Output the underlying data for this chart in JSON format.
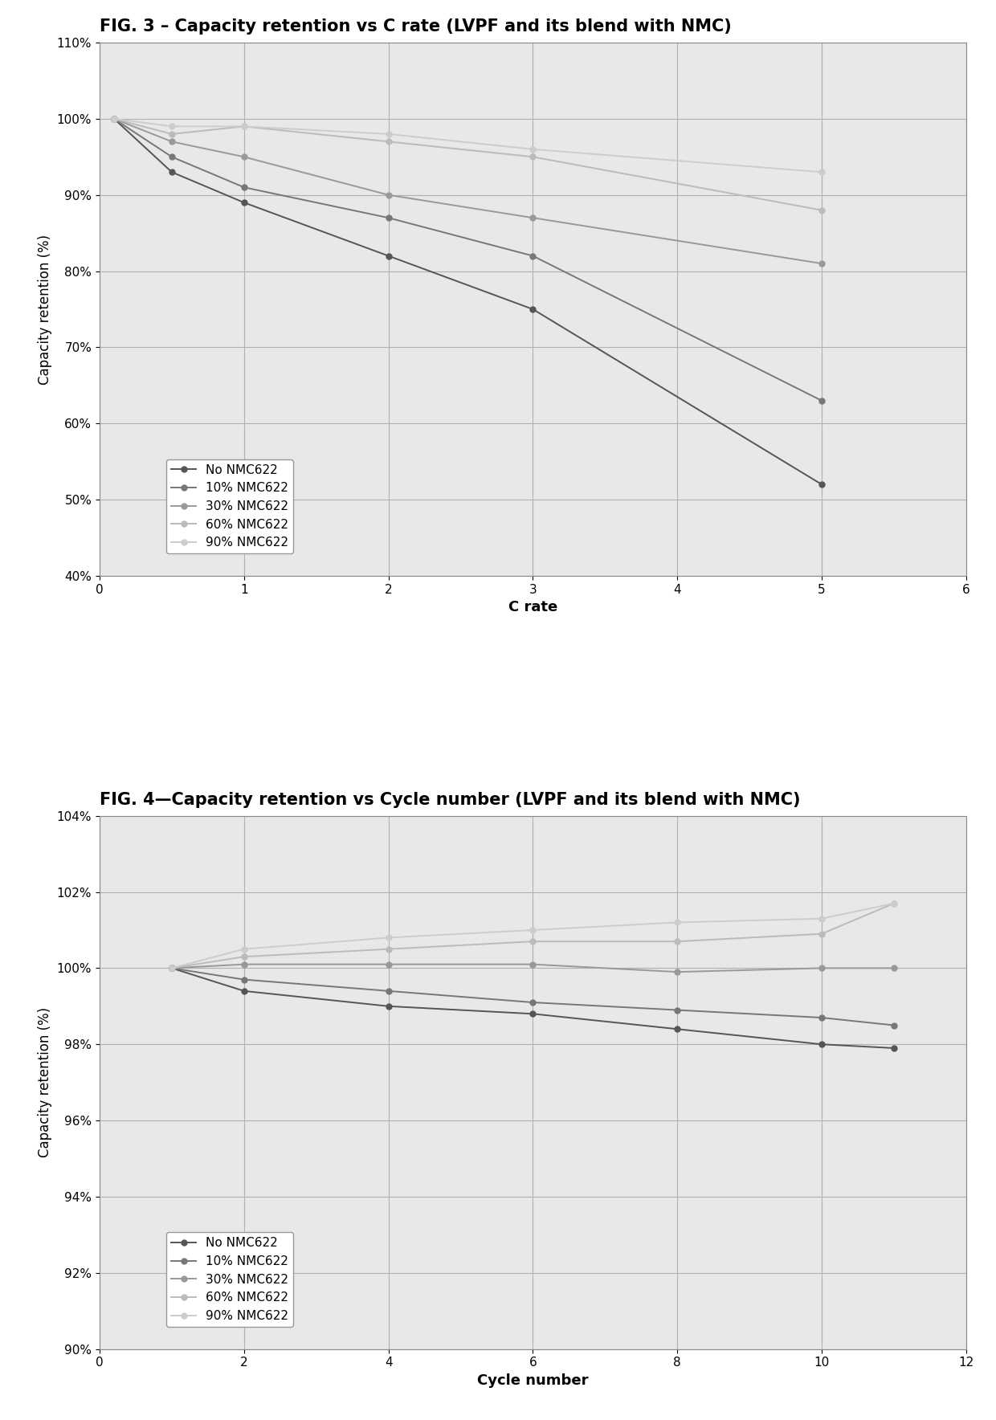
{
  "fig3_title": "FIG. 3 – Capacity retention vs C rate (LVPF and its blend with NMC)",
  "fig4_title": "FIG. 4—Capacity retention vs Cycle number (LVPF and its blend with NMC)",
  "legend_labels": [
    "No NMC622",
    "10% NMC622",
    "30% NMC622",
    "60% NMC622",
    "90% NMC622"
  ],
  "marker": "o",
  "fig3": {
    "xlabel": "C rate",
    "ylabel": "Capacity retention (%)",
    "xlim": [
      0,
      6
    ],
    "ylim": [
      0.4,
      1.1
    ],
    "xticks": [
      0,
      1,
      2,
      3,
      4,
      5,
      6
    ],
    "yticks": [
      0.4,
      0.5,
      0.6,
      0.7,
      0.8,
      0.9,
      1.0,
      1.1
    ],
    "series": [
      {
        "x": [
          0.1,
          0.5,
          1.0,
          2.0,
          3.0,
          5.0
        ],
        "y": [
          1.0,
          0.93,
          0.89,
          0.82,
          0.75,
          0.52
        ]
      },
      {
        "x": [
          0.1,
          0.5,
          1.0,
          2.0,
          3.0,
          5.0
        ],
        "y": [
          1.0,
          0.95,
          0.91,
          0.87,
          0.82,
          0.63
        ]
      },
      {
        "x": [
          0.1,
          0.5,
          1.0,
          2.0,
          3.0,
          5.0
        ],
        "y": [
          1.0,
          0.97,
          0.95,
          0.9,
          0.87,
          0.81
        ]
      },
      {
        "x": [
          0.1,
          0.5,
          1.0,
          2.0,
          3.0,
          5.0
        ],
        "y": [
          1.0,
          0.98,
          0.99,
          0.97,
          0.95,
          0.88
        ]
      },
      {
        "x": [
          0.1,
          0.5,
          1.0,
          2.0,
          3.0,
          5.0
        ],
        "y": [
          1.0,
          0.99,
          0.99,
          0.98,
          0.96,
          0.93
        ]
      }
    ]
  },
  "fig4": {
    "xlabel": "Cycle number",
    "ylabel": "Capacity retention (%)",
    "xlim": [
      0,
      12
    ],
    "ylim": [
      0.9,
      1.04
    ],
    "xticks": [
      0,
      2,
      4,
      6,
      8,
      10,
      12
    ],
    "yticks": [
      0.9,
      0.92,
      0.94,
      0.96,
      0.98,
      1.0,
      1.02,
      1.04
    ],
    "series": [
      {
        "x": [
          1,
          2,
          4,
          6,
          8,
          10,
          11
        ],
        "y": [
          1.0,
          0.994,
          0.99,
          0.988,
          0.984,
          0.98,
          0.979
        ]
      },
      {
        "x": [
          1,
          2,
          4,
          6,
          8,
          10,
          11
        ],
        "y": [
          1.0,
          0.997,
          0.994,
          0.991,
          0.989,
          0.987,
          0.985
        ]
      },
      {
        "x": [
          1,
          2,
          4,
          6,
          8,
          10,
          11
        ],
        "y": [
          1.0,
          1.001,
          1.001,
          1.001,
          0.999,
          1.0,
          1.0
        ]
      },
      {
        "x": [
          1,
          2,
          4,
          6,
          8,
          10,
          11
        ],
        "y": [
          1.0,
          1.003,
          1.005,
          1.007,
          1.007,
          1.009,
          1.017
        ]
      },
      {
        "x": [
          1,
          2,
          4,
          6,
          8,
          10,
          11
        ],
        "y": [
          1.0,
          1.005,
          1.008,
          1.01,
          1.012,
          1.013,
          1.017
        ]
      }
    ]
  },
  "background_color": "#ffffff",
  "grid_color": "#b0b0b0",
  "plot_bg_color": "#e8e8e8",
  "title_fontsize": 15,
  "axis_label_fontsize": 13,
  "tick_fontsize": 11,
  "legend_fontsize": 11
}
